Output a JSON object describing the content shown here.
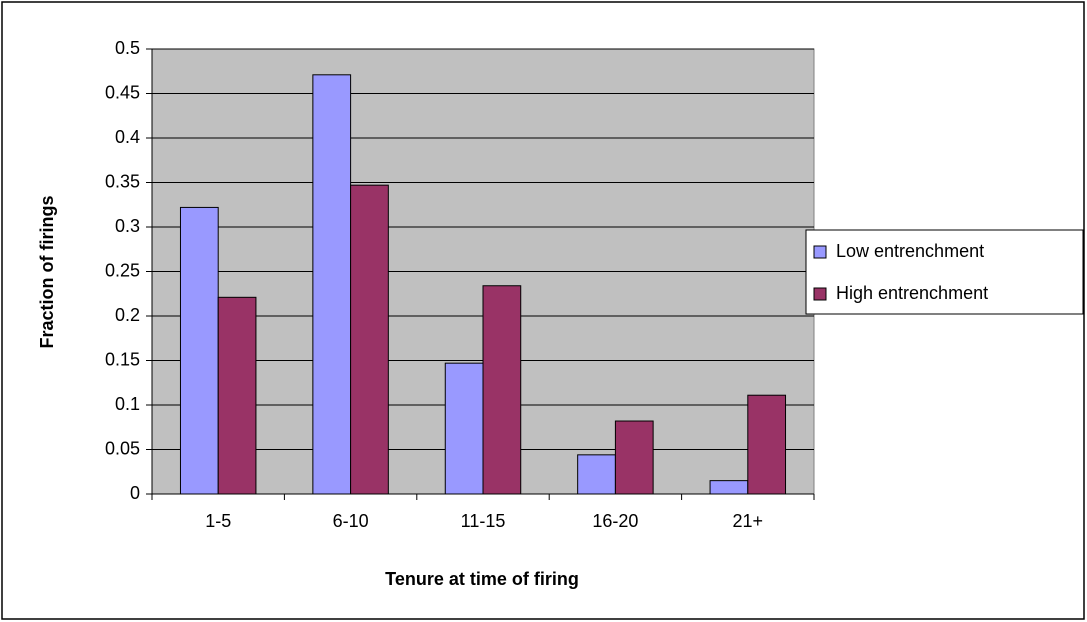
{
  "chart_data": {
    "type": "bar",
    "x_label": "Tenure at time of firing",
    "y_label": "Fraction of firings",
    "categories": [
      "1-5",
      "6-10",
      "11-15",
      "16-20",
      "21+"
    ],
    "series": [
      {
        "name": "Low entrenchment",
        "color": "#9999ff",
        "values": [
          0.322,
          0.471,
          0.147,
          0.044,
          0.015
        ]
      },
      {
        "name": "High entrenchment",
        "color": "#993366",
        "values": [
          0.221,
          0.347,
          0.234,
          0.082,
          0.111
        ]
      }
    ],
    "ylim": [
      0,
      0.5
    ],
    "yticks": [
      0,
      0.05,
      0.1,
      0.15,
      0.2,
      0.25,
      0.3,
      0.35,
      0.4,
      0.45,
      0.5
    ],
    "grid": true,
    "plot_background": "#c0c0c0",
    "legend": "right"
  }
}
